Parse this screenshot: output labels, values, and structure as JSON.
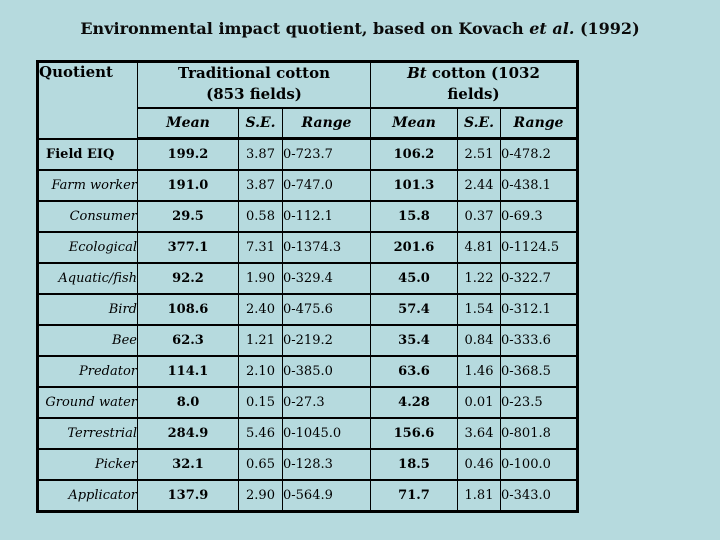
{
  "page": {
    "background_color": "#b6dade",
    "border_color": "#000000",
    "title": {
      "prefix": "Environmental impact quotient, based on Kovach ",
      "italic": "et al.",
      "suffix": " (1992)"
    }
  },
  "table": {
    "corner_header": "Quotient",
    "groups": [
      {
        "italic": "",
        "rest": "Traditional cotton (853 fields)"
      },
      {
        "italic": "Bt",
        "rest": " cotton (1032 fields)"
      }
    ],
    "sub_headers": [
      "Mean",
      "S.E.",
      "Range"
    ]
  },
  "chart_data": {
    "type": "table",
    "title": "Environmental impact quotient, based on Kovach et al. (1992)",
    "column_groups": [
      "Traditional cotton (853 fields)",
      "Bt cotton (1032 fields)"
    ],
    "columns": [
      "Quotient",
      "Mean",
      "S.E.",
      "Range",
      "Mean",
      "S.E.",
      "Range"
    ],
    "rows": [
      [
        "Field EIQ",
        "199.2",
        "3.87",
        "0-723.7",
        "106.2",
        "2.51",
        "0-478.2"
      ],
      [
        "Farm worker",
        "191.0",
        "3.87",
        "0-747.0",
        "101.3",
        "2.44",
        "0-438.1"
      ],
      [
        "Consumer",
        "29.5",
        "0.58",
        "0-112.1",
        "15.8",
        "0.37",
        "0-69.3"
      ],
      [
        "Ecological",
        "377.1",
        "7.31",
        "0-1374.3",
        "201.6",
        "4.81",
        "0-1124.5"
      ],
      [
        "Aquatic/fish",
        "92.2",
        "1.90",
        "0-329.4",
        "45.0",
        "1.22",
        "0-322.7"
      ],
      [
        "Bird",
        "108.6",
        "2.40",
        "0-475.6",
        "57.4",
        "1.54",
        "0-312.1"
      ],
      [
        "Bee",
        "62.3",
        "1.21",
        "0-219.2",
        "35.4",
        "0.84",
        "0-333.6"
      ],
      [
        "Predator",
        "114.1",
        "2.10",
        "0-385.0",
        "63.6",
        "1.46",
        "0-368.5"
      ],
      [
        "Ground water",
        "8.0",
        "0.15",
        "0-27.3",
        "4.28",
        "0.01",
        "0-23.5"
      ],
      [
        "Terrestrial",
        "284.9",
        "5.46",
        "0-1045.0",
        "156.6",
        "3.64",
        "0-801.8"
      ],
      [
        "Picker",
        "32.1",
        "0.65",
        "0-128.3",
        "18.5",
        "0.46",
        "0-100.0"
      ],
      [
        "Applicator",
        "137.9",
        "2.90",
        "0-564.9",
        "71.7",
        "1.81",
        "0-343.0"
      ]
    ]
  }
}
